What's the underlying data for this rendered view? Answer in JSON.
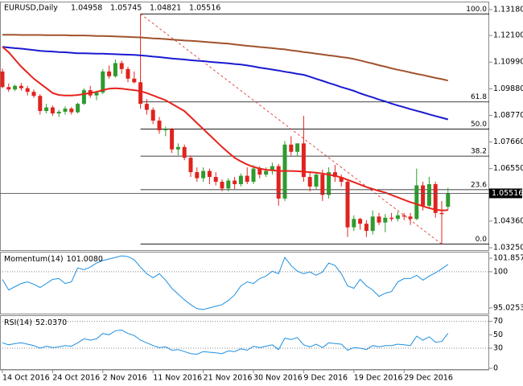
{
  "chart_data": {
    "type": "candlestick",
    "title": "EURUSD,Daily",
    "categories": [
      "14 Oct 2016",
      null,
      null,
      null,
      null,
      null,
      null,
      null,
      "24 Oct 2016",
      null,
      null,
      null,
      null,
      null,
      null,
      null,
      "2 Nov 2016",
      null,
      null,
      null,
      null,
      null,
      null,
      null,
      "11 Nov 2016",
      null,
      null,
      null,
      null,
      null,
      null,
      null,
      "21 Nov 2016",
      null,
      null,
      null,
      null,
      null,
      null,
      null,
      "30 Nov 2016",
      null,
      null,
      null,
      null,
      null,
      null,
      null,
      "9 Dec 2016",
      null,
      null,
      null,
      null,
      null,
      null,
      null,
      "19 Dec 2016",
      null,
      null,
      null,
      null,
      null,
      null,
      null,
      "29 Dec 2016",
      null,
      null,
      null,
      null,
      null,
      null,
      null
    ],
    "open": [
      1.106,
      1.0995,
      1.0985,
      1.1,
      1.099,
      1.0975,
      1.0958,
      1.0895,
      1.091,
      1.0885,
      1.0892,
      1.0905,
      1.089,
      1.0925,
      1.0982,
      1.096,
      1.0972,
      1.106,
      1.104,
      1.1095,
      1.107,
      1.103,
      1.1015,
      1.0925,
      1.09,
      1.0855,
      1.0815,
      1.082,
      1.0735,
      1.0745,
      1.07,
      1.064,
      1.0615,
      1.0645,
      1.062,
      1.06,
      1.0572,
      1.0605,
      1.059,
      1.0625,
      1.06,
      1.0655,
      1.063,
      1.0645,
      1.0665,
      1.053,
      1.0755,
      1.0725,
      1.076,
      1.062,
      1.058,
      1.063,
      1.0545,
      1.064,
      1.062,
      1.06,
      1.041,
      1.0445,
      1.0425,
      1.0395,
      1.0455,
      1.043,
      1.045,
      1.0445,
      1.046,
      1.0455,
      1.0445,
      1.0585,
      1.05,
      1.059,
      1.047,
      1.04958
    ],
    "high": [
      1.1072,
      1.101,
      1.1005,
      1.1012,
      1.1,
      1.0985,
      1.0965,
      1.0925,
      1.0918,
      1.09,
      1.0915,
      1.0912,
      1.093,
      1.099,
      1.1,
      1.098,
      1.107,
      1.1085,
      1.111,
      1.1105,
      1.108,
      1.106,
      1.13,
      1.0945,
      1.091,
      1.087,
      1.083,
      1.0825,
      1.076,
      1.0755,
      1.071,
      1.066,
      1.066,
      1.0655,
      1.064,
      1.061,
      1.0615,
      1.062,
      1.0635,
      1.066,
      1.067,
      1.0665,
      1.066,
      1.068,
      1.0675,
      1.077,
      1.079,
      1.076,
      1.0875,
      1.064,
      1.064,
      1.065,
      1.066,
      1.067,
      1.063,
      1.0605,
      1.046,
      1.045,
      1.044,
      1.048,
      1.047,
      1.0465,
      1.047,
      1.0475,
      1.047,
      1.047,
      1.0655,
      1.06,
      1.062,
      1.06,
      1.052,
      1.05745
    ],
    "low": [
      1.099,
      1.0975,
      1.0978,
      1.098,
      1.096,
      1.095,
      1.088,
      1.0885,
      1.0875,
      1.087,
      1.088,
      1.088,
      1.0885,
      1.092,
      1.095,
      1.094,
      1.0965,
      1.103,
      1.1035,
      1.105,
      1.1015,
      1.101,
      1.0905,
      1.088,
      1.084,
      1.08,
      1.079,
      1.072,
      1.071,
      1.069,
      1.062,
      1.06,
      1.06,
      1.059,
      1.0585,
      1.056,
      1.056,
      1.057,
      1.058,
      1.059,
      1.059,
      1.0615,
      1.062,
      1.063,
      1.05,
      1.052,
      1.071,
      1.0705,
      1.06,
      1.056,
      1.057,
      1.052,
      1.053,
      1.06,
      1.058,
      1.037,
      1.0395,
      1.04,
      1.037,
      1.038,
      1.042,
      1.039,
      1.0435,
      1.0435,
      1.044,
      1.042,
      1.044,
      1.048,
      1.049,
      1.045,
      1.034,
      1.04821
    ],
    "close": [
      1.0995,
      1.0985,
      1.1,
      1.099,
      1.0975,
      1.0958,
      1.0895,
      1.091,
      1.0885,
      1.0892,
      1.0905,
      1.089,
      1.0925,
      1.0982,
      1.096,
      1.0972,
      1.106,
      1.104,
      1.1095,
      1.107,
      1.103,
      1.1015,
      1.0925,
      1.09,
      1.0855,
      1.0815,
      1.082,
      1.0735,
      1.0745,
      1.07,
      1.064,
      1.0615,
      1.0645,
      1.062,
      1.06,
      1.0572,
      1.0605,
      1.059,
      1.0625,
      1.06,
      1.0655,
      1.063,
      1.0645,
      1.0665,
      1.053,
      1.0755,
      1.0725,
      1.076,
      1.062,
      1.058,
      1.063,
      1.0545,
      1.064,
      1.062,
      1.06,
      1.041,
      1.0445,
      1.0425,
      1.0395,
      1.0455,
      1.043,
      1.045,
      1.0445,
      1.046,
      1.0455,
      1.0445,
      1.0585,
      1.05,
      1.059,
      1.047,
      1.0465,
      1.05516
    ],
    "up_color": "#2e9b2e",
    "down_color": "#e0231e",
    "ylim": [
      1.0315,
      1.1348
    ],
    "yticks": [
      {
        "value": 1.1318,
        "label": "1.13180"
      },
      {
        "value": 1.121,
        "label": "1.12100"
      },
      {
        "value": 1.1099,
        "label": "1.10990"
      },
      {
        "value": 1.0988,
        "label": "1.09880"
      },
      {
        "value": 1.0877,
        "label": "1.08770"
      },
      {
        "value": 1.0766,
        "label": "1.07660"
      },
      {
        "value": 1.0655,
        "label": "1.06550"
      },
      {
        "value": 1.0436,
        "label": "1.04360"
      },
      {
        "value": 1.0325,
        "label": "1.03250"
      }
    ],
    "overlays": [
      {
        "color": "#a0522d",
        "values": [
          1.1213,
          1.1213,
          1.1213,
          1.1212,
          1.1212,
          1.1212,
          1.1212,
          1.1211,
          1.1211,
          1.1211,
          1.1211,
          1.121,
          1.121,
          1.121,
          1.1209,
          1.1208,
          1.1208,
          1.1207,
          1.1206,
          1.1205,
          1.1204,
          1.1203,
          1.1202,
          1.12,
          1.1198,
          1.1197,
          1.1195,
          1.1193,
          1.1191,
          1.1189,
          1.1188,
          1.1186,
          1.1184,
          1.1182,
          1.118,
          1.1178,
          1.1176,
          1.1173,
          1.117,
          1.1167,
          1.1165,
          1.1162,
          1.116,
          1.1157,
          1.1154,
          1.1152,
          1.1148,
          1.1145,
          1.1141,
          1.1138,
          1.1134,
          1.1131,
          1.1127,
          1.1124,
          1.112,
          1.1117,
          1.1112,
          1.1106,
          1.1099,
          1.1093,
          1.1086,
          1.108,
          1.1073,
          1.1067,
          1.1062,
          1.1056,
          1.105,
          1.1045,
          1.1039,
          1.1033,
          1.1028,
          1.1022
        ]
      },
      {
        "color": "#1a1ad0",
        "values": [
          1.1163,
          1.116,
          1.1157,
          1.1155,
          1.1152,
          1.1149,
          1.1146,
          1.1144,
          1.1143,
          1.1141,
          1.114,
          1.1138,
          1.1136,
          1.1136,
          1.1135,
          1.1134,
          1.1134,
          1.1133,
          1.1132,
          1.1131,
          1.113,
          1.1129,
          1.1127,
          1.1125,
          1.1122,
          1.112,
          1.1117,
          1.1114,
          1.1112,
          1.111,
          1.1107,
          1.1105,
          1.1103,
          1.11,
          1.1098,
          1.1096,
          1.1094,
          1.1091,
          1.1089,
          1.1085,
          1.1081,
          1.1076,
          1.1072,
          1.1068,
          1.1064,
          1.1059,
          1.1055,
          1.105,
          1.1046,
          1.1038,
          1.1029,
          1.1021,
          1.1012,
          1.1004,
          1.0995,
          1.0987,
          1.0979,
          1.0969,
          1.096,
          1.0952,
          1.0943,
          1.0935,
          1.0926,
          1.0918,
          1.0911,
          1.0903,
          1.0896,
          1.0889,
          1.0881,
          1.0874,
          1.0867,
          1.086
        ]
      },
      {
        "color": "#e8231c",
        "values": [
          1.1163,
          1.114,
          1.111,
          1.108,
          1.1055,
          1.103,
          1.101,
          1.099,
          1.097,
          1.0962,
          1.096,
          1.096,
          1.0962,
          1.0966,
          1.097,
          1.0975,
          1.0982,
          1.0988,
          1.099,
          1.0988,
          1.0985,
          1.0982,
          1.0978,
          1.097,
          1.096,
          1.095,
          1.094,
          1.0925,
          1.091,
          1.0895,
          1.087,
          1.0845,
          1.082,
          1.0795,
          1.077,
          1.0745,
          1.0722,
          1.07,
          1.0685,
          1.0672,
          1.0662,
          1.0655,
          1.065,
          1.0648,
          1.0645,
          1.0645,
          1.0645,
          1.0644,
          1.0642,
          1.064,
          1.0638,
          1.0634,
          1.063,
          1.0625,
          1.0618,
          1.0608,
          1.0598,
          1.0588,
          1.0578,
          1.057,
          1.0562,
          1.0555,
          1.0545,
          1.0535,
          1.0525,
          1.0515,
          1.0507,
          1.0498,
          1.049,
          1.0484,
          1.048,
          1.0482
        ]
      }
    ],
    "levels": [
      {
        "value": 1.13,
        "label": "100.0"
      },
      {
        "value": 1.0933,
        "label": "61.8"
      },
      {
        "value": 1.082,
        "label": "50.0"
      },
      {
        "value": 1.0707,
        "label": "38.2"
      },
      {
        "value": 1.0567,
        "label": "23.6"
      },
      {
        "value": 1.034,
        "label": "0.0"
      }
    ],
    "trendline_color": "#e0231e",
    "panels": [
      {
        "type": "line",
        "title": "Momentum(14)",
        "last_label": "101.0080",
        "color": "#1e8fe0",
        "values": [
          98.95,
          97.49,
          97.94,
          98.39,
          98.61,
          98.28,
          97.83,
          98.39,
          98.95,
          99.06,
          98.39,
          98.61,
          100.52,
          100.29,
          100.63,
          101.19,
          101.53,
          101.75,
          101.97,
          102.19,
          102.08,
          101.64,
          100.63,
          99.73,
          99.17,
          99.73,
          98.84,
          97.72,
          96.93,
          96.15,
          95.48,
          94.92,
          94.8,
          95.03,
          95.25,
          95.48,
          96.04,
          96.82,
          98.05,
          98.61,
          98.39,
          99.06,
          99.4,
          100.07,
          99.73,
          101.97,
          100.85,
          100.07,
          99.73,
          99.96,
          99.51,
          99.96,
          101.19,
          100.85,
          99.73,
          98.05,
          97.72,
          98.95,
          98.05,
          97.49,
          96.6,
          97.05,
          97.27,
          98.61,
          99.06,
          99.06,
          99.51,
          98.84,
          99.4,
          99.84,
          100.4,
          101.008
        ],
        "ylim": [
          94.24,
          102.64
        ],
        "yticks": [
          101.857,
          100,
          95.0253
        ],
        "levels": [
          100
        ]
      },
      {
        "type": "line",
        "title": "RSI(14)",
        "last_label": "52.0370",
        "color": "#1e8fe0",
        "values": [
          38,
          35,
          37,
          38,
          36,
          34,
          30,
          33,
          31,
          32,
          34,
          33,
          38,
          44,
          42,
          44,
          52,
          50,
          56,
          57,
          52,
          49,
          42,
          38,
          34,
          31,
          32,
          27,
          28,
          25,
          22,
          21,
          25,
          24,
          23,
          22,
          26,
          25,
          29,
          27,
          33,
          31,
          33,
          35,
          28,
          45,
          43,
          46,
          35,
          32,
          36,
          31,
          38,
          37,
          36,
          27,
          31,
          30,
          28,
          34,
          32,
          34,
          34,
          36,
          35,
          34,
          48,
          42,
          47,
          39,
          40,
          52.037
        ],
        "ylim": [
          0,
          78
        ],
        "yticks": [
          70,
          50,
          30,
          0
        ],
        "levels": [
          70,
          30
        ]
      }
    ]
  }
}
